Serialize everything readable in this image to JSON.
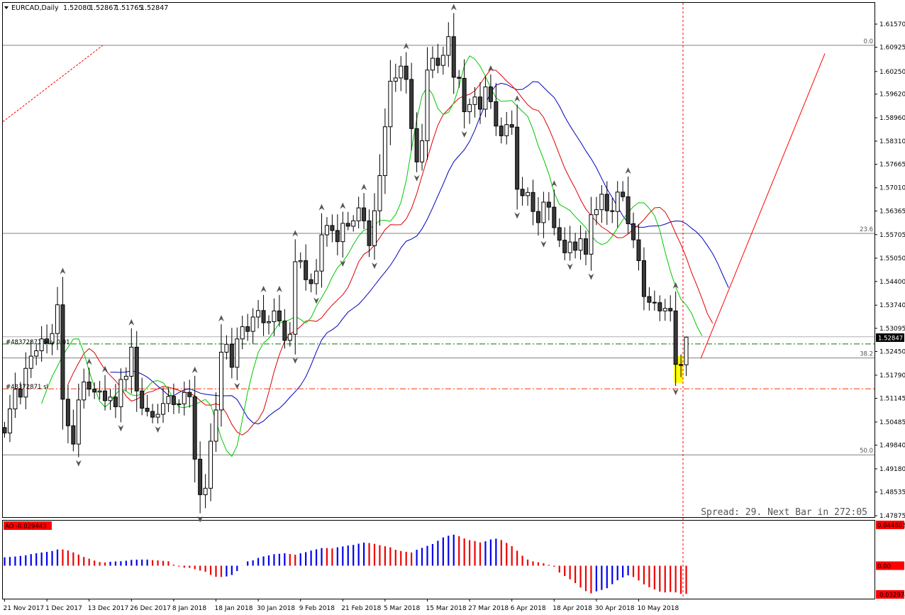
{
  "header": {
    "symbol": "EURCAD,Daily",
    "open": "1.52080",
    "high": "1.52867",
    "low": "1.51765",
    "close": "1.52847"
  },
  "price_tag": "1.52847",
  "status": {
    "spread_text": "Spread: 29. Next Bar in 272:05"
  },
  "orders": {
    "buy_label": "#48372871 buy 0.01",
    "sl_label": "#48372871 sl"
  },
  "colors": {
    "bull": "#ffffff",
    "bear": "#3a3a3a",
    "ma_fast": "#00c800",
    "ma_mid": "#e00000",
    "ma_slow": "#0000c0",
    "osc_up": "#0000ee",
    "osc_down": "#ee0000",
    "order_buy": "#007a00",
    "order_sl": "#ff3000",
    "highlight": "#ffff00"
  },
  "chart_data": [
    {
      "type": "candlestick",
      "title": "EURCAD,Daily",
      "y_ticks": [
        "1.61570",
        "1.60925",
        "1.60250",
        "1.59620",
        "1.58960",
        "1.58310",
        "1.57665",
        "1.57010",
        "1.56365",
        "1.55705",
        "1.55050",
        "1.54400",
        "1.53740",
        "1.53095",
        "1.52450",
        "1.51790",
        "1.51145",
        "1.50485",
        "1.49840",
        "1.49180",
        "1.48535",
        "1.47875"
      ],
      "ylim": [
        1.47875,
        1.6157
      ],
      "x_tick_labels": [
        "21 Nov 2017",
        "1 Dec 2017",
        "13 Dec 2017",
        "26 Dec 2017",
        "8 Jan 2018",
        "18 Jan 2018",
        "30 Jan 2018",
        "9 Feb 2018",
        "21 Feb 2018",
        "5 Mar 2018",
        "15 Mar 2018",
        "27 Mar 2018",
        "6 Apr 2018",
        "18 Apr 2018",
        "30 Apr 2018",
        "10 May 2018"
      ],
      "x_tick_index": [
        0,
        8,
        16,
        24,
        32,
        40,
        48,
        56,
        64,
        72,
        80,
        88,
        96,
        104,
        112,
        120
      ],
      "fib_levels": [
        {
          "label": "0.0",
          "price": 1.6098
        },
        {
          "label": "23.6",
          "price": 1.5574
        },
        {
          "label": "38.2",
          "price": 1.5227
        },
        {
          "label": "50.0",
          "price": 1.4957
        }
      ],
      "order_levels": {
        "buy": 1.5266,
        "sl": 1.5141
      },
      "series": [
        {
          "name": "",
          "kind": "ohlc",
          "close": [
            1.5018,
            1.5085,
            1.514,
            1.5118,
            1.5198,
            1.5232,
            1.5247,
            1.528,
            1.5268,
            1.5295,
            1.5375,
            1.5112,
            1.5038,
            1.4987,
            1.511,
            1.516,
            1.514,
            1.5132,
            1.5135,
            1.5108,
            1.5118,
            1.5091,
            1.5167,
            1.5176,
            1.5257,
            1.5135,
            1.5087,
            1.5078,
            1.5062,
            1.507,
            1.51,
            1.512,
            1.5097,
            1.5099,
            1.5131,
            1.5119,
            1.4945,
            1.4846,
            1.4864,
            1.4995,
            1.5082,
            1.5243,
            1.5265,
            1.5201,
            1.528,
            1.5314,
            1.5301,
            1.5341,
            1.5359,
            1.5325,
            1.5328,
            1.5358,
            1.533,
            1.5276,
            1.5293,
            1.5495,
            1.5498,
            1.5445,
            1.5434,
            1.5469,
            1.557,
            1.5596,
            1.5582,
            1.5551,
            1.5602,
            1.5594,
            1.5609,
            1.5645,
            1.5609,
            1.554,
            1.5637,
            1.5735,
            1.5871,
            1.5998,
            1.6007,
            1.604,
            1.6003,
            1.5866,
            1.5773,
            1.5832,
            1.6029,
            1.6062,
            1.6042,
            1.607,
            1.6122,
            1.6009,
            1.6006,
            1.5913,
            1.5933,
            1.5954,
            1.592,
            1.5982,
            1.5941,
            1.5873,
            1.5846,
            1.5877,
            1.587,
            1.5697,
            1.5679,
            1.5688,
            1.5635,
            1.5604,
            1.5661,
            1.5647,
            1.559,
            1.5555,
            1.552,
            1.555,
            1.5527,
            1.5559,
            1.5516,
            1.5626,
            1.564,
            1.5683,
            1.5637,
            1.5635,
            1.5689,
            1.5676,
            1.5601,
            1.5556,
            1.5498,
            1.5398,
            1.5382,
            1.5381,
            1.5358,
            1.5365,
            1.5358,
            1.5209,
            1.5206,
            1.5285
          ]
        },
        {
          "name": "",
          "kind": "moving_average_fast"
        },
        {
          "name": "",
          "kind": "moving_average_mid"
        },
        {
          "name": "",
          "kind": "moving_average_slow"
        }
      ],
      "annotations": [
        "red dotted vertical line at current bar",
        "red trend line rising to upper right",
        "yellow highlight box on last bars"
      ]
    },
    {
      "type": "bar",
      "title": "",
      "label": "AO -0.029443",
      "y_ticks_right": [
        "0.044803",
        "0.00",
        "-0.032974"
      ],
      "ylim": [
        -0.032974,
        0.044803
      ],
      "values": [
        0.0088,
        0.0091,
        0.0096,
        0.0102,
        0.0108,
        0.0121,
        0.013,
        0.0138,
        0.0144,
        0.0153,
        0.0169,
        0.0169,
        0.0159,
        0.0139,
        0.0116,
        0.0091,
        0.0073,
        0.0053,
        0.0038,
        0.0034,
        0.0041,
        0.0044,
        0.0046,
        0.0052,
        0.0061,
        0.0063,
        0.0064,
        0.0064,
        0.0058,
        0.0055,
        0.005,
        0.0046,
        0.0011,
        -0.0009,
        -0.0021,
        -0.0023,
        -0.0036,
        -0.0051,
        -0.0064,
        -0.0096,
        -0.0116,
        -0.0118,
        -0.0112,
        -0.0097,
        -0.0056,
        -0.0001,
        0.0045,
        0.0056,
        0.0081,
        0.0097,
        0.0108,
        0.012,
        0.0124,
        0.013,
        0.0122,
        0.0115,
        0.0129,
        0.0141,
        0.0158,
        0.0171,
        0.0184,
        0.0184,
        0.018,
        0.0192,
        0.0201,
        0.0211,
        0.0217,
        0.023,
        0.0241,
        0.0237,
        0.0228,
        0.0214,
        0.0203,
        0.0192,
        0.0166,
        0.0154,
        0.0145,
        0.0138,
        0.0166,
        0.0186,
        0.0207,
        0.0226,
        0.026,
        0.0295,
        0.0313,
        0.0324,
        0.0308,
        0.0284,
        0.0266,
        0.0257,
        0.0243,
        0.0255,
        0.0274,
        0.0282,
        0.0268,
        0.0238,
        0.0204,
        0.0156,
        0.0104,
        0.0064,
        0.0045,
        0.0035,
        0.0025,
        0.0009,
        -0.0011,
        -0.0072,
        -0.0108,
        -0.0142,
        -0.0182,
        -0.0228,
        -0.0266,
        -0.0289,
        -0.0268,
        -0.0253,
        -0.0235,
        -0.0193,
        -0.0152,
        -0.0123,
        -0.0101,
        -0.0118,
        -0.0154,
        -0.0195,
        -0.0225,
        -0.0248,
        -0.0271,
        -0.0279,
        -0.0274,
        -0.0279,
        -0.0294,
        -0.0294
      ],
      "colors": [
        "up",
        "up",
        "up",
        "up",
        "up",
        "up",
        "up",
        "up",
        "up",
        "up",
        "up",
        "down",
        "down",
        "down",
        "down",
        "down",
        "down",
        "down",
        "down",
        "down",
        "up",
        "up",
        "up",
        "up",
        "up",
        "up",
        "up",
        "up",
        "down",
        "down",
        "down",
        "down",
        "down",
        "down",
        "down",
        "down",
        "down",
        "down",
        "down",
        "down",
        "down",
        "down",
        "up",
        "up",
        "up",
        "up",
        "up",
        "up",
        "up",
        "up",
        "up",
        "up",
        "up",
        "up",
        "down",
        "down",
        "up",
        "up",
        "up",
        "up",
        "up",
        "down",
        "down",
        "up",
        "up",
        "up",
        "up",
        "up",
        "up",
        "down",
        "down",
        "down",
        "down",
        "down",
        "down",
        "down",
        "down",
        "down",
        "up",
        "up",
        "up",
        "up",
        "up",
        "up",
        "up",
        "up",
        "down",
        "down",
        "down",
        "down",
        "down",
        "up",
        "up",
        "up",
        "down",
        "down",
        "down",
        "down",
        "down",
        "down",
        "down",
        "down",
        "down",
        "down",
        "down",
        "down",
        "down",
        "down",
        "down",
        "down",
        "down",
        "down",
        "up",
        "up",
        "up",
        "up",
        "up",
        "up",
        "up",
        "down",
        "down",
        "down",
        "down",
        "down",
        "down",
        "down",
        "down",
        "down",
        "down",
        "down"
      ]
    }
  ]
}
